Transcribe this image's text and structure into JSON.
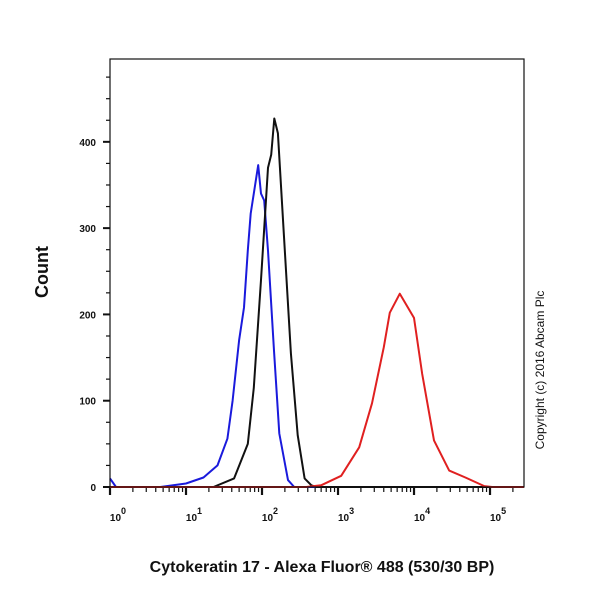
{
  "chart_data": {
    "type": "line",
    "title": "",
    "xlabel": "Cytokeratin 17 - Alexa Fluor® 488 (530/30 BP)",
    "ylabel": "Count",
    "x_scale": "log",
    "xlim": [
      1,
      280000
    ],
    "ylim": [
      0,
      496
    ],
    "x_ticks": [
      {
        "value": 1,
        "base": "10",
        "exp": "0"
      },
      {
        "value": 10,
        "base": "10",
        "exp": "1"
      },
      {
        "value": 100,
        "base": "10",
        "exp": "2"
      },
      {
        "value": 1000,
        "base": "10",
        "exp": "3"
      },
      {
        "value": 10000,
        "base": "10",
        "exp": "4"
      },
      {
        "value": 100000,
        "base": "10",
        "exp": "5"
      }
    ],
    "y_ticks": [
      {
        "value": 0,
        "label": "0"
      },
      {
        "value": 100,
        "label": "100"
      },
      {
        "value": 200,
        "label": "200"
      },
      {
        "value": 300,
        "label": "300"
      },
      {
        "value": 400,
        "label": "400"
      }
    ],
    "grid": false,
    "legend": "none",
    "annotation": "Copyright (c) 2016 Abcam Plc",
    "series": [
      {
        "color": "#1a1adc",
        "points": [
          [
            1,
            10
          ],
          [
            1.2,
            0
          ],
          [
            4.6,
            0
          ],
          [
            10,
            4
          ],
          [
            17,
            11
          ],
          [
            26,
            25
          ],
          [
            35,
            56
          ],
          [
            41,
            100
          ],
          [
            50,
            170
          ],
          [
            58,
            208
          ],
          [
            65,
            274
          ],
          [
            71,
            317
          ],
          [
            89,
            373
          ],
          [
            97,
            340
          ],
          [
            107,
            332
          ],
          [
            120,
            274
          ],
          [
            144,
            158
          ],
          [
            169,
            62
          ],
          [
            220,
            8
          ],
          [
            265,
            0
          ],
          [
            280000,
            0
          ]
        ]
      },
      {
        "color": "#111111",
        "points": [
          [
            1,
            0
          ],
          [
            23,
            0
          ],
          [
            43,
            10
          ],
          [
            65,
            50
          ],
          [
            78,
            115
          ],
          [
            97,
            240
          ],
          [
            120,
            370
          ],
          [
            132,
            385
          ],
          [
            145,
            427
          ],
          [
            162,
            410
          ],
          [
            195,
            290
          ],
          [
            240,
            155
          ],
          [
            295,
            60
          ],
          [
            363,
            10
          ],
          [
            446,
            2
          ],
          [
            520,
            0
          ],
          [
            280000,
            0
          ]
        ]
      },
      {
        "color": "#e02020",
        "points": [
          [
            1,
            0
          ],
          [
            380,
            0
          ],
          [
            600,
            2
          ],
          [
            1100,
            13
          ],
          [
            1900,
            46
          ],
          [
            2800,
            97
          ],
          [
            4000,
            162
          ],
          [
            4800,
            202
          ],
          [
            6500,
            224
          ],
          [
            10000,
            196
          ],
          [
            12800,
            131
          ],
          [
            18300,
            54
          ],
          [
            29000,
            19
          ],
          [
            47500,
            11
          ],
          [
            84000,
            1
          ],
          [
            107000,
            0
          ],
          [
            280000,
            0
          ]
        ]
      }
    ]
  }
}
